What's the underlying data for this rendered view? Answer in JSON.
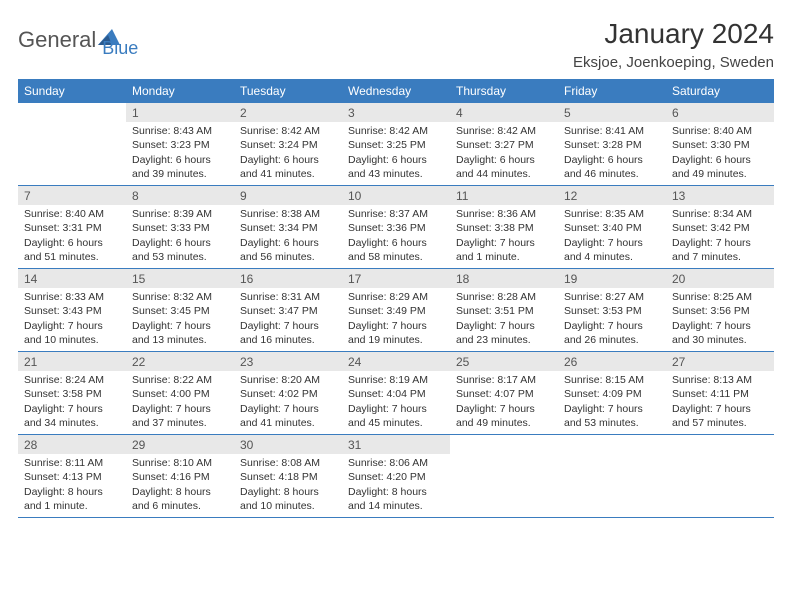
{
  "logo": {
    "text1": "General",
    "text2": "Blue"
  },
  "title": "January 2024",
  "location": "Eksjoe, Joenkoeping, Sweden",
  "colors": {
    "header_bar": "#3a7cbf",
    "daynum_bg": "#e8e8e8",
    "rule": "#3a7cbf"
  },
  "daysOfWeek": [
    "Sunday",
    "Monday",
    "Tuesday",
    "Wednesday",
    "Thursday",
    "Friday",
    "Saturday"
  ],
  "weeks": [
    [
      null,
      {
        "n": "1",
        "sr": "Sunrise: 8:43 AM",
        "ss": "Sunset: 3:23 PM",
        "d1": "Daylight: 6 hours",
        "d2": "and 39 minutes."
      },
      {
        "n": "2",
        "sr": "Sunrise: 8:42 AM",
        "ss": "Sunset: 3:24 PM",
        "d1": "Daylight: 6 hours",
        "d2": "and 41 minutes."
      },
      {
        "n": "3",
        "sr": "Sunrise: 8:42 AM",
        "ss": "Sunset: 3:25 PM",
        "d1": "Daylight: 6 hours",
        "d2": "and 43 minutes."
      },
      {
        "n": "4",
        "sr": "Sunrise: 8:42 AM",
        "ss": "Sunset: 3:27 PM",
        "d1": "Daylight: 6 hours",
        "d2": "and 44 minutes."
      },
      {
        "n": "5",
        "sr": "Sunrise: 8:41 AM",
        "ss": "Sunset: 3:28 PM",
        "d1": "Daylight: 6 hours",
        "d2": "and 46 minutes."
      },
      {
        "n": "6",
        "sr": "Sunrise: 8:40 AM",
        "ss": "Sunset: 3:30 PM",
        "d1": "Daylight: 6 hours",
        "d2": "and 49 minutes."
      }
    ],
    [
      {
        "n": "7",
        "sr": "Sunrise: 8:40 AM",
        "ss": "Sunset: 3:31 PM",
        "d1": "Daylight: 6 hours",
        "d2": "and 51 minutes."
      },
      {
        "n": "8",
        "sr": "Sunrise: 8:39 AM",
        "ss": "Sunset: 3:33 PM",
        "d1": "Daylight: 6 hours",
        "d2": "and 53 minutes."
      },
      {
        "n": "9",
        "sr": "Sunrise: 8:38 AM",
        "ss": "Sunset: 3:34 PM",
        "d1": "Daylight: 6 hours",
        "d2": "and 56 minutes."
      },
      {
        "n": "10",
        "sr": "Sunrise: 8:37 AM",
        "ss": "Sunset: 3:36 PM",
        "d1": "Daylight: 6 hours",
        "d2": "and 58 minutes."
      },
      {
        "n": "11",
        "sr": "Sunrise: 8:36 AM",
        "ss": "Sunset: 3:38 PM",
        "d1": "Daylight: 7 hours",
        "d2": "and 1 minute."
      },
      {
        "n": "12",
        "sr": "Sunrise: 8:35 AM",
        "ss": "Sunset: 3:40 PM",
        "d1": "Daylight: 7 hours",
        "d2": "and 4 minutes."
      },
      {
        "n": "13",
        "sr": "Sunrise: 8:34 AM",
        "ss": "Sunset: 3:42 PM",
        "d1": "Daylight: 7 hours",
        "d2": "and 7 minutes."
      }
    ],
    [
      {
        "n": "14",
        "sr": "Sunrise: 8:33 AM",
        "ss": "Sunset: 3:43 PM",
        "d1": "Daylight: 7 hours",
        "d2": "and 10 minutes."
      },
      {
        "n": "15",
        "sr": "Sunrise: 8:32 AM",
        "ss": "Sunset: 3:45 PM",
        "d1": "Daylight: 7 hours",
        "d2": "and 13 minutes."
      },
      {
        "n": "16",
        "sr": "Sunrise: 8:31 AM",
        "ss": "Sunset: 3:47 PM",
        "d1": "Daylight: 7 hours",
        "d2": "and 16 minutes."
      },
      {
        "n": "17",
        "sr": "Sunrise: 8:29 AM",
        "ss": "Sunset: 3:49 PM",
        "d1": "Daylight: 7 hours",
        "d2": "and 19 minutes."
      },
      {
        "n": "18",
        "sr": "Sunrise: 8:28 AM",
        "ss": "Sunset: 3:51 PM",
        "d1": "Daylight: 7 hours",
        "d2": "and 23 minutes."
      },
      {
        "n": "19",
        "sr": "Sunrise: 8:27 AM",
        "ss": "Sunset: 3:53 PM",
        "d1": "Daylight: 7 hours",
        "d2": "and 26 minutes."
      },
      {
        "n": "20",
        "sr": "Sunrise: 8:25 AM",
        "ss": "Sunset: 3:56 PM",
        "d1": "Daylight: 7 hours",
        "d2": "and 30 minutes."
      }
    ],
    [
      {
        "n": "21",
        "sr": "Sunrise: 8:24 AM",
        "ss": "Sunset: 3:58 PM",
        "d1": "Daylight: 7 hours",
        "d2": "and 34 minutes."
      },
      {
        "n": "22",
        "sr": "Sunrise: 8:22 AM",
        "ss": "Sunset: 4:00 PM",
        "d1": "Daylight: 7 hours",
        "d2": "and 37 minutes."
      },
      {
        "n": "23",
        "sr": "Sunrise: 8:20 AM",
        "ss": "Sunset: 4:02 PM",
        "d1": "Daylight: 7 hours",
        "d2": "and 41 minutes."
      },
      {
        "n": "24",
        "sr": "Sunrise: 8:19 AM",
        "ss": "Sunset: 4:04 PM",
        "d1": "Daylight: 7 hours",
        "d2": "and 45 minutes."
      },
      {
        "n": "25",
        "sr": "Sunrise: 8:17 AM",
        "ss": "Sunset: 4:07 PM",
        "d1": "Daylight: 7 hours",
        "d2": "and 49 minutes."
      },
      {
        "n": "26",
        "sr": "Sunrise: 8:15 AM",
        "ss": "Sunset: 4:09 PM",
        "d1": "Daylight: 7 hours",
        "d2": "and 53 minutes."
      },
      {
        "n": "27",
        "sr": "Sunrise: 8:13 AM",
        "ss": "Sunset: 4:11 PM",
        "d1": "Daylight: 7 hours",
        "d2": "and 57 minutes."
      }
    ],
    [
      {
        "n": "28",
        "sr": "Sunrise: 8:11 AM",
        "ss": "Sunset: 4:13 PM",
        "d1": "Daylight: 8 hours",
        "d2": "and 1 minute."
      },
      {
        "n": "29",
        "sr": "Sunrise: 8:10 AM",
        "ss": "Sunset: 4:16 PM",
        "d1": "Daylight: 8 hours",
        "d2": "and 6 minutes."
      },
      {
        "n": "30",
        "sr": "Sunrise: 8:08 AM",
        "ss": "Sunset: 4:18 PM",
        "d1": "Daylight: 8 hours",
        "d2": "and 10 minutes."
      },
      {
        "n": "31",
        "sr": "Sunrise: 8:06 AM",
        "ss": "Sunset: 4:20 PM",
        "d1": "Daylight: 8 hours",
        "d2": "and 14 minutes."
      },
      null,
      null,
      null
    ]
  ]
}
